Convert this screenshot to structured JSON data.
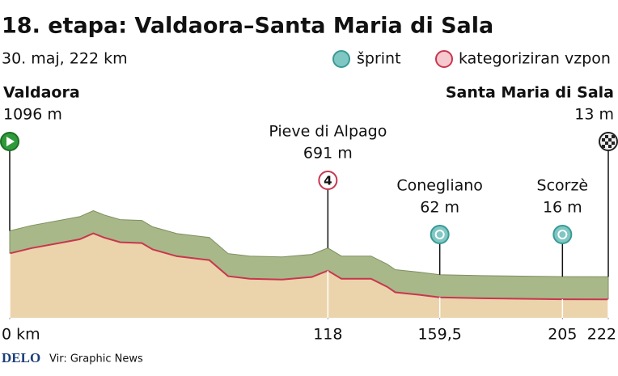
{
  "chart_data": {
    "type": "profile",
    "title": "18. etapa: Valdaora–Santa Maria di Sala",
    "subtitle": "30. maj, 222 km",
    "legend": [
      "šprint",
      "kategoriziran vzpon"
    ],
    "x": [
      0,
      8,
      20,
      26,
      31,
      35,
      41,
      49,
      53,
      62,
      74,
      81,
      89,
      101,
      112,
      118,
      123,
      134,
      140,
      143,
      152,
      159.5,
      175,
      205,
      222
    ],
    "values": [
      1096,
      1220,
      1360,
      1430,
      1570,
      1470,
      1360,
      1340,
      1190,
      1030,
      940,
      560,
      500,
      480,
      540,
      691,
      500,
      500,
      310,
      180,
      120,
      62,
      40,
      16,
      13
    ],
    "xlim": [
      0,
      222
    ],
    "ylim": [
      -420,
      2000
    ],
    "xticks": [
      {
        "value": 0,
        "label": "0 km"
      },
      118,
      {
        "value": 159.5,
        "label": "159,5"
      },
      205,
      222
    ],
    "points": [
      {
        "name": "Valdaora",
        "x": 0,
        "value": 1096,
        "value_label": "1096 m",
        "kind": "start"
      },
      {
        "name": "Pieve di Alpago",
        "x": 118,
        "value": 691,
        "value_label": "691 m",
        "kind": "climb",
        "category": "4"
      },
      {
        "name": "Conegliano",
        "x": 159.5,
        "value": 62,
        "value_label": "62 m",
        "kind": "sprint"
      },
      {
        "name": "Scorzè",
        "x": 205,
        "value": 16,
        "value_label": "16 m",
        "kind": "sprint"
      },
      {
        "name": "Santa Maria di Sala",
        "x": 222,
        "value": 13,
        "value_label": "13 m",
        "kind": "finish"
      }
    ],
    "source_brand": "DELO",
    "source": "Vir: Graphic News",
    "colors": {
      "ground": "#ebd3ab",
      "side": "#a8b889",
      "edge": "#c8364f"
    }
  }
}
